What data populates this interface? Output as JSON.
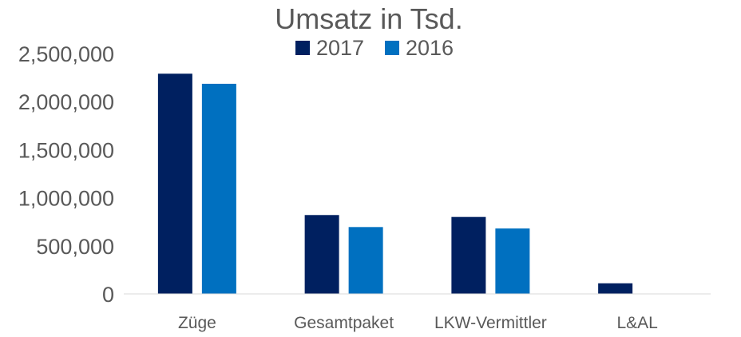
{
  "chart_data": {
    "type": "bar",
    "title": "Umsatz in Tsd.",
    "xlabel": "",
    "ylabel": "",
    "categories": [
      "Züge",
      "Gesamtpaket",
      "LKW-Vermittler",
      "L&AL"
    ],
    "series": [
      {
        "name": "2017",
        "color": "#002060",
        "values": [
          2290000,
          820000,
          800000,
          110000
        ]
      },
      {
        "name": "2016",
        "color": "#0070C0",
        "values": [
          2185000,
          695000,
          680000,
          0
        ]
      }
    ],
    "ylim": [
      0,
      2500000
    ],
    "yticks": [
      "0",
      "500,000",
      "1,000,000",
      "1,500,000",
      "2,000,000",
      "2,500,000"
    ],
    "grid": false,
    "legend_position": "top"
  }
}
